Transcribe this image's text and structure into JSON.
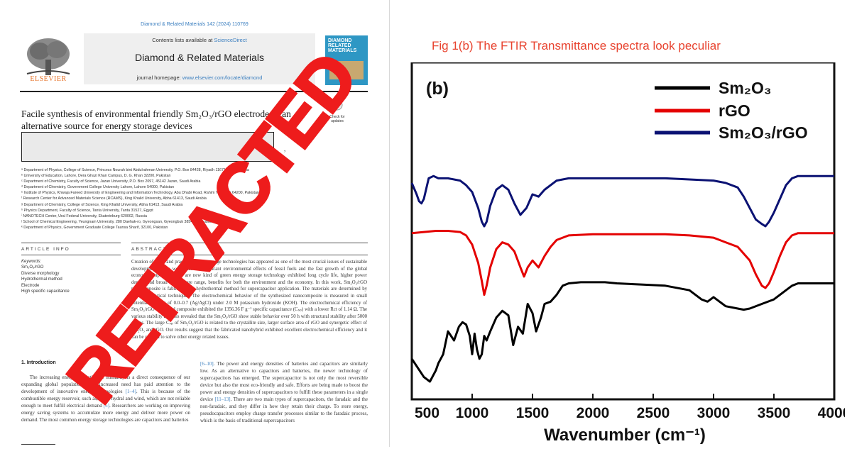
{
  "article": {
    "journal_citation": "Diamond & Related Materials 142 (2024) 110769",
    "contents_prefix": "Contents lists available at ",
    "contents_link": "ScienceDirect",
    "journal_name": "Diamond & Related Materials",
    "homepage_prefix": "journal homepage: ",
    "homepage_link": "www.elsevier.com/locate/diamond",
    "publisher": "ELSEVIER",
    "cover_text": [
      "DIAMOND",
      "RELATED",
      "MATERIALS"
    ],
    "check_badge": "Check for updates",
    "title_line1": "Facile synthesis of environmental friendly Sm₂O₃/rGO electrode as an",
    "title_line2": "alternative source for energy storage devices",
    "authors_comma": ",",
    "affiliations": [
      "ᵃ Department of Physics, College of Science, Princess Nourah bint Abdulrahman University, P.O. Box 84428, Riyadh 11671, Saudi Arabia",
      "ᵇ University of Education, Lahore, Dera Ghazi Khan Campus, D. G. Khan 32200, Pakistan",
      "ᶜ Department of Chemistry, Faculty of Science, Jazan University, P.O. Box 2097, 45142 Jazan, Saudi Arabia",
      "ᵈ Department of Chemistry, Government College University Lahore, Lahore 54000, Pakistan",
      "ᵉ Institute of Physics, Khwaja Fareed University of Engineering and Information Technology, Abu Dhabi Road, Rahim Yar Khan 64200, Pakistan",
      "ᶠ Research Center for Advanced Materials Science (RCAMS), King Khalid University, Abha 61413, Saudi Arabia",
      "ᵍ Department of Chemistry, College of Science, King Khalid University, Abha 61413, Saudi Arabia",
      "ʰ Physics Department, Faculty of Science, Tanta University, Tanta 31527, Egypt",
      "ⁱ NANOTECH Center, Ural Federal University, Ekaterinburg 620002, Russia",
      "ʲ School of Chemical Engineering, Yeungnam University, 280 Daehak-ro, Gyeongsan, Gyeongbuk 38541, Republic of Korea",
      "ᵏ Department of Physics, Government Graduate College Taunsa Sharif, 32100, Pakistan"
    ],
    "article_info_label": "ARTICLE INFO",
    "abstract_label": "ABSTRACT",
    "keywords": [
      "Keywords:",
      "Sm₂O₃/rGO",
      "Diverse morphology",
      "Hydrothermal method",
      "Electrode",
      "High specific capacitance"
    ],
    "abstract": "Creation of clean and practical energy storage technologies has appeared as one of the most crucial issues of sustainable development in the world due to significant environmental effects of fossil fuels and the fast growth of the global economy. Supercapacitors are new kind of green energy storage technology exhibited long cycle life, higher power density and broad temperature range, benefits for both the environment and the economy. In this work, Sm₂O₃/rGO nanocomposite is fabricated via hydrothermal method for supercapacitor application. The materials are determined by several analytical techniques. The electrochemical behavior of the synthesized nanocomposite is measured in small potential window of 0.0–0.7 (Ag/AgCl) under 2.0 M potassium hydroxide (KOH). The electrochemical efficiency of Sm₂O₃/rGO nanosized composite exhibited the 1356.36 F g⁻¹ specific capacitance (Cₛₚ) with a lower Rct of 1.14 Ω. The various stability analysis revealed that the Sm₂O₃/rGO show stable behavior over 50 h with structural stability after 5000 cycles. The large Cₛₚ of Sm₂O₃/rGO is related to the crystallite size, larger surface area of rGO and synergetic effect of Sm₂O₃ and rGO. Our results suggest that the fabricated nanohybrid exhibited excellent electrochemical efficiency and it can be utilized to solve other energy related issues.",
    "intro_heading": "1.  Introduction",
    "intro_left": [
      {
        "t": "The increasing energy utilization of humanity is a direct consequence of our expanding global population. This increased need has paid attention to the development of innovative energy technologies "
      },
      {
        "t": "[1–4]",
        "ref": true
      },
      {
        "t": ". This is because of the combustible energy reservoir, such as, solar, hydral and wind, which are not reliable enough to meet fulfill electrical demand "
      },
      {
        "t": "[5]",
        "ref": true
      },
      {
        "t": ". Researchers are working on improving energy saving systems to accumulate more energy and deliver more power on demand. The most common energy storage technologies are capacitors and batteries"
      }
    ],
    "intro_right": [
      {
        "t": "[6–10]",
        "ref": true
      },
      {
        "t": ". The power and energy densities of batteries and capacitors are similarly low. As an alternative to capacitors and batteries, the newer technology of supercapacitors has emerged. The supercapacitor is not only the most reversible device but also the most eco-friendly and safe. Efforts are being made to boost the power and energy densities of supercapacitors to fulfill these parameters in a single device "
      },
      {
        "t": "[11–13]",
        "ref": true
      },
      {
        "t": ". There are two main types of supercapacitors, the faradaic and the non-faradaic, and they differ in how they retain their charge. To store energy, pseudocapacitors employ charge transfer processes similar to the faradaic process, which is the basis of traditional supercapacitors"
      }
    ],
    "stamp": "RETRACTED"
  },
  "figure": {
    "caption": "Fig 1(b) The FTIR Transmittance spectra look peculiar"
  },
  "chart_data": {
    "type": "line",
    "title": "(b)",
    "xlabel": "Wavenumber (cm⁻¹)",
    "ylabel": "",
    "xlim": [
      500,
      4000
    ],
    "x_ticks": [
      500,
      1000,
      1500,
      2000,
      2500,
      3000,
      3500,
      4000
    ],
    "x_tick_labels": [
      "500",
      "1000",
      "1500",
      "2000",
      "2500",
      "3000",
      "3500",
      "4000"
    ],
    "y_ticks_shown": false,
    "ylim": [
      0,
      100
    ],
    "legend_position": "top-right",
    "series": [
      {
        "name": "Sm₂O₃",
        "color": "#000000",
        "x": [
          500,
          550,
          600,
          650,
          700,
          720,
          760,
          800,
          850,
          890,
          920,
          950,
          980,
          1000,
          1020,
          1040,
          1060,
          1080,
          1100,
          1120,
          1150,
          1200,
          1250,
          1300,
          1340,
          1380,
          1420,
          1460,
          1500,
          1530,
          1570,
          1600,
          1650,
          1700,
          1750,
          1800,
          1900,
          2000,
          2100,
          2200,
          2400,
          2600,
          2800,
          2900,
          2950,
          3000,
          3050,
          3100,
          3200,
          3250,
          3300,
          3400,
          3500,
          3600,
          3650,
          3700,
          3750,
          3800,
          3900,
          4000
        ],
        "y": [
          10,
          6,
          2,
          0,
          5,
          8,
          12,
          22,
          18,
          24,
          26,
          25,
          20,
          12,
          21,
          14,
          10,
          12,
          20,
          18,
          22,
          28,
          31,
          29,
          16,
          24,
          21,
          34,
          30,
          22,
          28,
          34,
          35,
          38,
          42,
          43,
          43.5,
          43.5,
          43.5,
          43,
          42.5,
          42,
          40,
          36,
          35,
          37,
          35,
          33,
          32,
          31.5,
          32,
          34,
          36,
          40,
          42,
          43,
          43,
          43,
          43,
          43
        ]
      },
      {
        "name": "rGO",
        "color": "#e40000",
        "x": [
          500,
          600,
          700,
          800,
          900,
          950,
          1000,
          1050,
          1080,
          1100,
          1120,
          1150,
          1200,
          1250,
          1300,
          1350,
          1400,
          1430,
          1460,
          1500,
          1550,
          1600,
          1650,
          1700,
          1800,
          2000,
          2200,
          2400,
          2600,
          2800,
          3000,
          3100,
          3200,
          3300,
          3350,
          3400,
          3430,
          3460,
          3500,
          3550,
          3600,
          3650,
          3700,
          3800,
          3900,
          4000
        ],
        "y": [
          65,
          65.5,
          66,
          66,
          65.5,
          64,
          60,
          52,
          44,
          38,
          42,
          50,
          58,
          61,
          60,
          57,
          50,
          46,
          50,
          53,
          50,
          55,
          59,
          62,
          64,
          64.5,
          64.5,
          64.5,
          64.5,
          64,
          63,
          61,
          59,
          53,
          47,
          42,
          41,
          43,
          48,
          55,
          61,
          64,
          65,
          65,
          65,
          65
        ]
      },
      {
        "name": "Sm₂O₃/rGO",
        "color": "#0b1273",
        "x": [
          500,
          540,
          560,
          580,
          600,
          640,
          680,
          720,
          800,
          900,
          950,
          1000,
          1050,
          1080,
          1100,
          1120,
          1150,
          1200,
          1250,
          1300,
          1350,
          1400,
          1450,
          1500,
          1550,
          1600,
          1700,
          1800,
          2000,
          2200,
          2400,
          2600,
          2800,
          3000,
          3100,
          3200,
          3250,
          3300,
          3350,
          3400,
          3430,
          3460,
          3500,
          3550,
          3600,
          3650,
          3700,
          3800,
          3900,
          4000
        ],
        "y": [
          87,
          82,
          79,
          78,
          80,
          89,
          90,
          89,
          89,
          88,
          86,
          83,
          76,
          70,
          68,
          70,
          77,
          84,
          86,
          84,
          78,
          73,
          76,
          82,
          81,
          84,
          88,
          89,
          89,
          89,
          89,
          89,
          88.5,
          88,
          87,
          85,
          81,
          76,
          71,
          69,
          68,
          70,
          74,
          80,
          86,
          89,
          90,
          90,
          90,
          90
        ]
      }
    ]
  }
}
